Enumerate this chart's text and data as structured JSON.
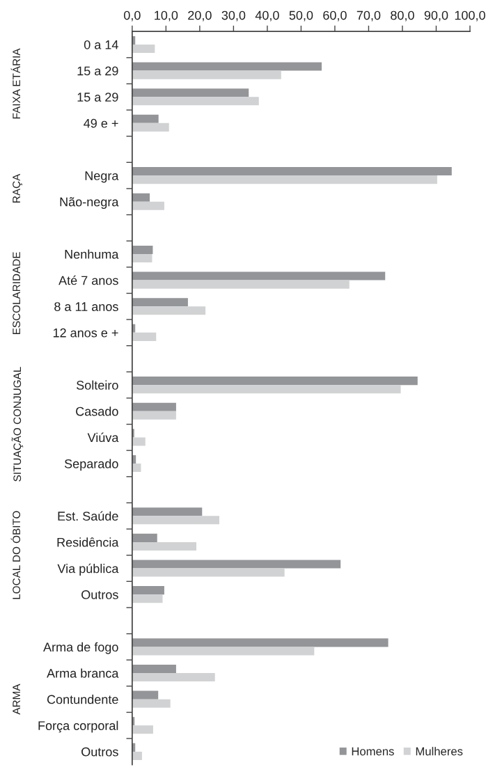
{
  "chart_data": {
    "type": "bar",
    "orientation": "horizontal",
    "categories": [
      "0 a 14",
      "15 a 29",
      "15 a 29",
      "49 e +",
      null,
      "Negra",
      "Não-negra",
      null,
      "Nenhuma",
      "Até 7 anos",
      "8 a 11 anos",
      "12 anos e +",
      null,
      "Solteiro",
      "Casado",
      "Viúva",
      "Separado",
      null,
      "Est. Saúde",
      "Residência",
      "Via pública",
      "Outros",
      null,
      "Arma de fogo",
      "Arma branca",
      "Contundente",
      "Força corporal",
      "Outros"
    ],
    "series": [
      {
        "name": "Homens",
        "color": "#939598",
        "values": [
          0.9,
          56.1,
          34.5,
          7.8,
          null,
          94.6,
          5.2,
          null,
          6.1,
          74.9,
          16.5,
          0.9,
          null,
          84.5,
          13.0,
          0.6,
          1.1,
          null,
          20.7,
          7.4,
          61.7,
          9.5,
          null,
          75.8,
          13.0,
          7.7,
          0.7,
          0.9
        ]
      },
      {
        "name": "Mulheres",
        "color": "#d1d2d4",
        "values": [
          6.7,
          44.1,
          37.5,
          10.9,
          null,
          90.3,
          9.5,
          null,
          5.9,
          64.3,
          21.7,
          7.1,
          null,
          79.5,
          13.0,
          3.9,
          2.6,
          null,
          25.8,
          19.0,
          45.1,
          9.0,
          null,
          53.9,
          24.5,
          11.3,
          6.2,
          2.9
        ]
      }
    ],
    "annotations": [
      "FAIXA ETÁRIA",
      "RAÇA",
      "ESCOLARIDADE",
      "SITUAÇÃO CONJUGAL",
      "LOCAL DO ÓBITO",
      "ARMA"
    ],
    "xlim": [
      0,
      100
    ],
    "xticks": [
      {
        "value": 0,
        "label": "0,0"
      },
      {
        "value": 10,
        "label": "10,0"
      },
      {
        "value": 20,
        "label": "20,0"
      },
      {
        "value": 30,
        "label": "30,0"
      },
      {
        "value": 40,
        "label": "40,0"
      },
      {
        "value": 50,
        "label": "50,0"
      },
      {
        "value": 60,
        "label": "60,0"
      },
      {
        "value": 70,
        "label": "70,0"
      },
      {
        "value": 80,
        "label": "80,0"
      },
      {
        "value": 90,
        "label": "90,0"
      },
      {
        "value": 100,
        "label": "100,0"
      }
    ],
    "legend": "bottom right",
    "grid": false
  }
}
